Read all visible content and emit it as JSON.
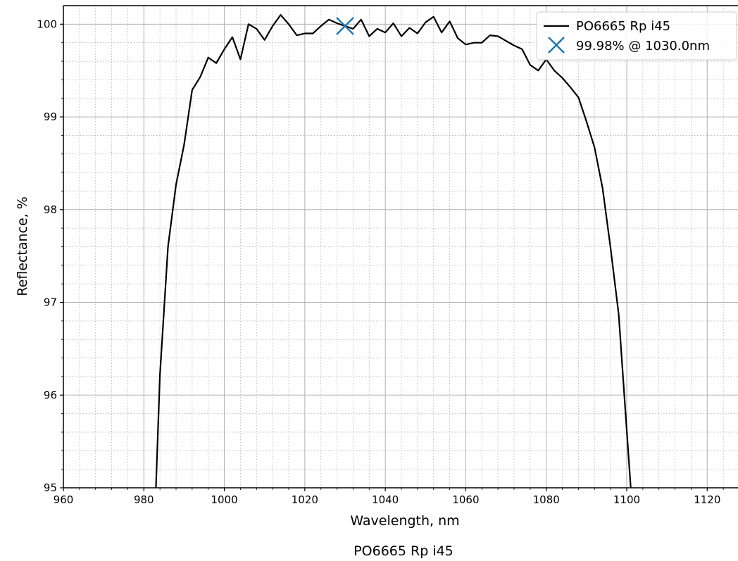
{
  "chart_data": {
    "type": "line",
    "title": "",
    "caption": "PO6665 Rp i45",
    "xlabel": "Wavelength, nm",
    "ylabel": "Reflectance, %",
    "xlim": [
      960,
      1128
    ],
    "ylim": [
      95,
      100.2
    ],
    "xticks": [
      960,
      980,
      1000,
      1020,
      1040,
      1060,
      1080,
      1100,
      1120
    ],
    "yticks": [
      95,
      96,
      97,
      98,
      99,
      100
    ],
    "grid": true,
    "minor_grid": true,
    "legend_position": "top-right",
    "series": [
      {
        "name": "PO6665 Rp i45",
        "color": "#000000",
        "x": [
          983,
          984,
          986,
          988,
          990,
          992,
          994,
          996,
          998,
          1000,
          1002,
          1004,
          1006,
          1008,
          1010,
          1012,
          1014,
          1016,
          1018,
          1020,
          1022,
          1024,
          1026,
          1028,
          1030,
          1032,
          1034,
          1036,
          1038,
          1040,
          1042,
          1044,
          1046,
          1048,
          1050,
          1052,
          1054,
          1056,
          1058,
          1060,
          1062,
          1064,
          1066,
          1068,
          1070,
          1072,
          1074,
          1076,
          1078,
          1080,
          1082,
          1084,
          1086,
          1088,
          1090,
          1092,
          1094,
          1096,
          1098,
          1100,
          1101
        ],
        "y": [
          95.0,
          96.22,
          97.6,
          98.27,
          98.7,
          99.29,
          99.43,
          99.64,
          99.58,
          99.73,
          99.86,
          99.62,
          100.0,
          99.95,
          99.83,
          99.98,
          100.1,
          100.0,
          99.88,
          99.9,
          99.9,
          99.98,
          100.05,
          100.01,
          99.98,
          99.95,
          100.05,
          99.87,
          99.95,
          99.91,
          100.01,
          99.87,
          99.96,
          99.9,
          100.02,
          100.08,
          99.91,
          100.03,
          99.85,
          99.78,
          99.8,
          99.8,
          99.88,
          99.87,
          99.82,
          99.77,
          99.73,
          99.56,
          99.5,
          99.62,
          99.5,
          99.42,
          99.32,
          99.21,
          98.95,
          98.67,
          98.23,
          97.58,
          96.87,
          95.62,
          95.0
        ]
      }
    ],
    "annotations": [
      {
        "label": "99.98% @ 1030.0nm",
        "x": 1030.0,
        "y": 99.98,
        "marker": "x",
        "color": "#1f77b4"
      }
    ]
  }
}
